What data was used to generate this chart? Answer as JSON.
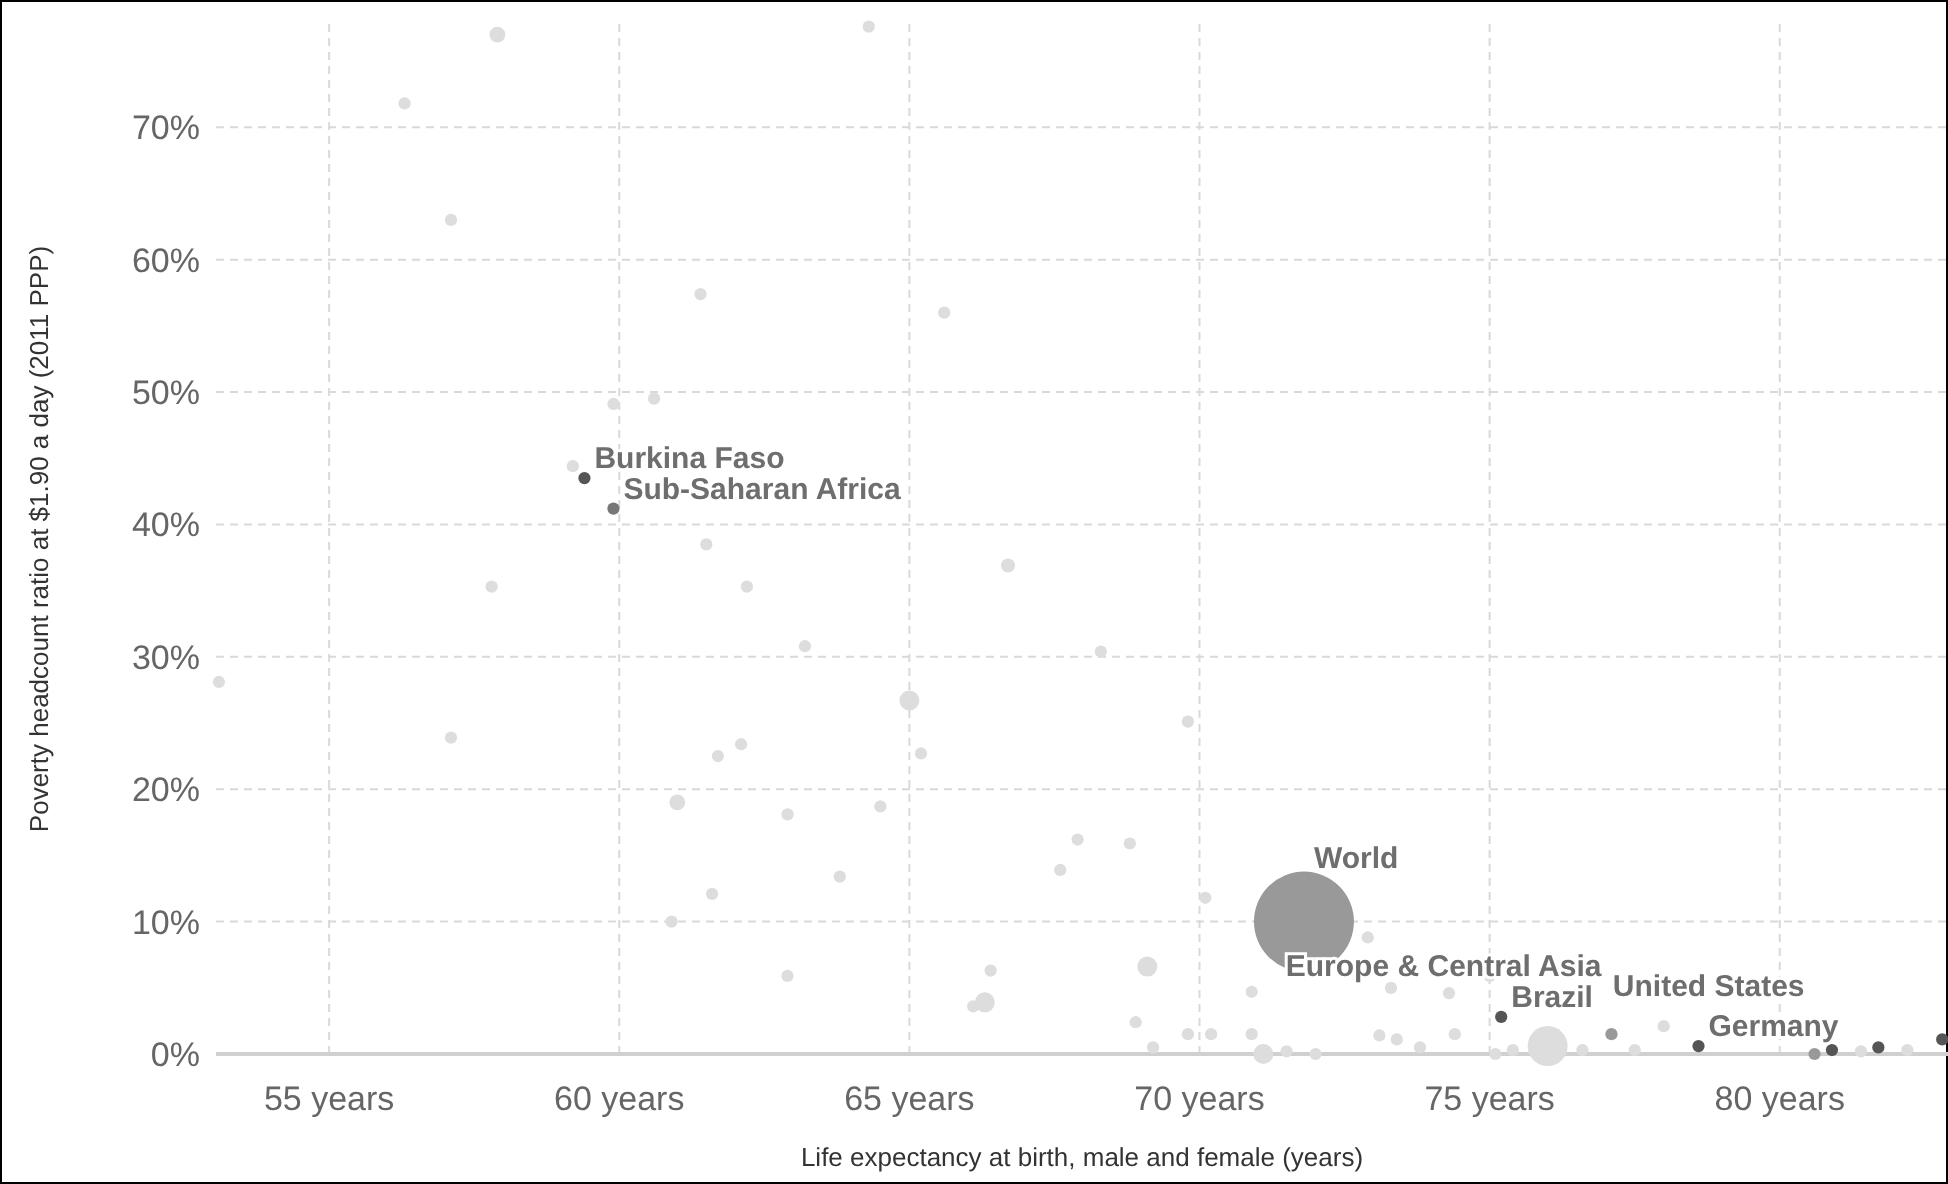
{
  "chart_data": {
    "type": "bubble",
    "xlabel": "Life expectancy at birth, male and female (years)",
    "ylabel": "Poverty headcount ratio at $1.90 a day (2011 PPP)",
    "x": [
      57.9,
      56.3,
      57.1,
      61.4,
      65.6,
      59.9,
      60.6,
      64.3,
      59.2,
      61.5,
      57.8,
      62.2,
      59.4,
      59.9,
      66.7,
      68.3,
      69.8,
      63.2,
      53.1,
      57.1,
      65.0,
      65.2,
      62.1,
      61.7,
      61.0,
      62.9,
      64.5,
      63.8,
      61.6,
      60.9,
      62.9,
      66.1,
      66.3,
      67.9,
      68.8,
      67.6,
      70.1,
      71.8,
      72.9,
      69.1,
      66.4,
      70.9,
      73.3,
      74.3,
      75.0,
      68.9,
      69.8,
      70.2,
      69.2,
      70.9,
      71.1,
      71.5,
      72.0,
      73.1,
      73.4,
      73.8,
      74.4,
      75.2,
      75.1,
      75.4,
      76.0,
      76.6,
      77.1,
      77.5,
      78.0,
      78.6,
      80.6,
      80.9,
      81.7,
      82.8,
      82.2,
      81.4
    ],
    "values": [
      77.0,
      71.8,
      63.0,
      57.4,
      56.0,
      49.1,
      49.5,
      77.6,
      44.4,
      38.5,
      35.3,
      35.3,
      43.5,
      41.2,
      36.9,
      30.4,
      25.1,
      30.8,
      28.1,
      23.9,
      26.7,
      22.7,
      23.4,
      22.5,
      19.0,
      18.1,
      18.7,
      13.4,
      12.1,
      10.0,
      5.9,
      3.6,
      3.9,
      16.2,
      15.9,
      13.9,
      11.8,
      10.0,
      8.8,
      6.6,
      6.3,
      4.7,
      5.0,
      4.6,
      5.9,
      2.4,
      1.5,
      1.5,
      0.5,
      1.5,
      0,
      0.2,
      0,
      1.4,
      1.1,
      0.5,
      1.5,
      2.8,
      0,
      0.3,
      0.6,
      0.3,
      1.5,
      0.3,
      2.1,
      0.6,
      0,
      0.3,
      0.5,
      1.1,
      0.3,
      0.2
    ],
    "sizes": [
      0.025,
      0.015,
      0.015,
      0.015,
      0.015,
      0.015,
      0.015,
      0.015,
      0.015,
      0.015,
      0.015,
      0.015,
      0.015,
      0.015,
      0.02,
      0.015,
      0.015,
      0.015,
      0.015,
      0.015,
      0.04,
      0.015,
      0.015,
      0.015,
      0.025,
      0.015,
      0.015,
      0.015,
      0.015,
      0.015,
      0.015,
      0.015,
      0.04,
      0.015,
      0.015,
      0.015,
      0.015,
      1,
      0.015,
      0.04,
      0.015,
      0.015,
      0.015,
      0.015,
      0.015,
      0.015,
      0.015,
      0.015,
      0.015,
      0.015,
      0.04,
      0.015,
      0.015,
      0.015,
      0.015,
      0.015,
      0.015,
      0.015,
      0.015,
      0.015,
      0.16,
      0.015,
      0.015,
      0.015,
      0.015,
      0.015,
      0.015,
      0.015,
      0.015,
      0.015,
      0.015,
      0.015
    ],
    "colors": [
      "#dddddd",
      "#dddddd",
      "#dddddd",
      "#dddddd",
      "#dddddd",
      "#dddddd",
      "#dddddd",
      "#dddddd",
      "#dddddd",
      "#dddddd",
      "#dddddd",
      "#dddddd",
      "#555555",
      "#777777",
      "#dddddd",
      "#dddddd",
      "#dddddd",
      "#dddddd",
      "#dddddd",
      "#dddddd",
      "#dddddd",
      "#dddddd",
      "#dddddd",
      "#dddddd",
      "#dddddd",
      "#dddddd",
      "#dddddd",
      "#dddddd",
      "#dddddd",
      "#dddddd",
      "#dddddd",
      "#dddddd",
      "#dddddd",
      "#dddddd",
      "#dddddd",
      "#dddddd",
      "#dddddd",
      "#999999",
      "#dddddd",
      "#dddddd",
      "#dddddd",
      "#dddddd",
      "#dddddd",
      "#dddddd",
      "#dddddd",
      "#dddddd",
      "#dddddd",
      "#dddddd",
      "#dddddd",
      "#dddddd",
      "#dddddd",
      "#dddddd",
      "#dddddd",
      "#dddddd",
      "#dddddd",
      "#dddddd",
      "#dddddd",
      "#555555",
      "#dddddd",
      "#dddddd",
      "#dddddd",
      "#dddddd",
      "#999999",
      "#dddddd",
      "#dddddd",
      "#555555",
      "#999999",
      "#555555",
      "#555555",
      "#555555",
      "#dddddd",
      "#dddddd"
    ],
    "xlim": [
      53.05,
      82.9
    ],
    "xticks": [
      {
        "value": 55,
        "label": "55 years"
      },
      {
        "value": 60,
        "label": "60 years"
      },
      {
        "value": 65,
        "label": "65 years"
      },
      {
        "value": 70,
        "label": "70 years"
      },
      {
        "value": 75,
        "label": "75 years"
      },
      {
        "value": 80,
        "label": "80 years"
      }
    ],
    "ylim": [
      0,
      77.8
    ],
    "yticks": [
      {
        "value": 0,
        "label": "0%"
      },
      {
        "value": 10,
        "label": "10%"
      },
      {
        "value": 20,
        "label": "20%"
      },
      {
        "value": 30,
        "label": "30%"
      },
      {
        "value": 40,
        "label": "40%"
      },
      {
        "value": 50,
        "label": "50%"
      },
      {
        "value": 60,
        "label": "60%"
      },
      {
        "value": 70,
        "label": "70%"
      }
    ],
    "grid": true,
    "annotations": [
      {
        "text": "Burkina Faso",
        "x": 59.4,
        "y": 43.5
      },
      {
        "text": "Sub-Saharan Africa",
        "x": 59.9,
        "y": 41.2
      },
      {
        "text": "World",
        "x": 71.8,
        "y": 10.0
      },
      {
        "text": "Brazil",
        "x": 75.2,
        "y": 2.8
      },
      {
        "text": "Europe & Central Asia",
        "x": 77.1,
        "y": 1.5
      },
      {
        "text": "Germany",
        "x": 78.6,
        "y": 0.6
      },
      {
        "text": "United States",
        "x": 80.6,
        "y": 0
      }
    ]
  }
}
